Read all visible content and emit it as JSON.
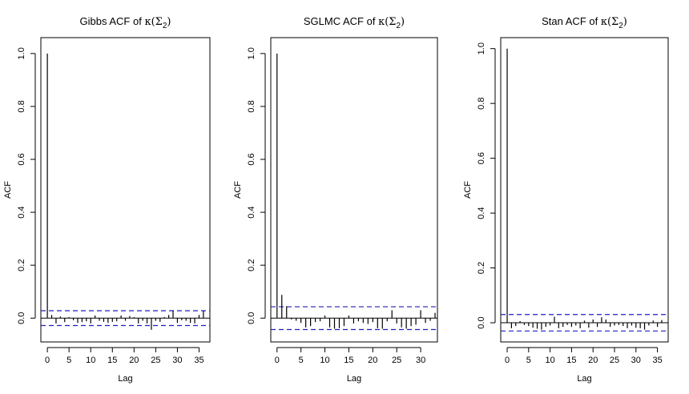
{
  "chart_data": [
    {
      "type": "bar",
      "title_main": "Gibbs ACF of ",
      "title_math": "κ(Σ",
      "title_sub": "2",
      "title_close": ")",
      "xlabel": "Lag",
      "ylabel": "ACF",
      "xlim": [
        -1.5,
        37.5
      ],
      "ylim": [
        -0.09,
        1.06
      ],
      "xticks": [
        0,
        5,
        10,
        15,
        20,
        25,
        30,
        35
      ],
      "yticks": [
        0.0,
        0.2,
        0.4,
        0.6,
        0.8,
        1.0
      ],
      "ci": 0.028,
      "lags": [
        0,
        1,
        2,
        3,
        4,
        5,
        6,
        7,
        8,
        9,
        10,
        11,
        12,
        13,
        14,
        15,
        16,
        17,
        18,
        19,
        20,
        21,
        22,
        23,
        24,
        25,
        26,
        27,
        28,
        29,
        30,
        31,
        32,
        33,
        34,
        35,
        36
      ],
      "values": [
        1.0,
        0.012,
        -0.02,
        0.006,
        -0.015,
        0.004,
        -0.008,
        -0.018,
        -0.015,
        -0.012,
        -0.02,
        0.01,
        -0.01,
        -0.014,
        -0.018,
        -0.014,
        -0.012,
        0.01,
        -0.01,
        0.008,
        0.004,
        -0.02,
        -0.01,
        -0.02,
        -0.044,
        -0.01,
        -0.014,
        0.004,
        0.012,
        0.028,
        -0.018,
        -0.008,
        -0.01,
        -0.018,
        -0.02,
        0.012,
        0.028
      ]
    },
    {
      "type": "bar",
      "title_main": "SGLMC ACF of ",
      "title_math": "κ(Σ",
      "title_sub": "2",
      "title_close": ")",
      "xlabel": "Lag",
      "ylabel": "ACF",
      "xlim": [
        -1.3,
        33.5
      ],
      "ylim": [
        -0.09,
        1.06
      ],
      "xticks": [
        0,
        5,
        10,
        15,
        20,
        25,
        30
      ],
      "yticks": [
        0.0,
        0.2,
        0.4,
        0.6,
        0.8,
        1.0
      ],
      "ci": 0.043,
      "lags": [
        0,
        1,
        2,
        3,
        4,
        5,
        6,
        7,
        8,
        9,
        10,
        11,
        12,
        13,
        14,
        15,
        16,
        17,
        18,
        19,
        20,
        21,
        22,
        23,
        24,
        25,
        26,
        27,
        28,
        29,
        30,
        31,
        32,
        33
      ],
      "values": [
        1.0,
        0.088,
        0.045,
        -0.005,
        -0.01,
        -0.018,
        -0.035,
        -0.03,
        -0.015,
        -0.012,
        0.01,
        -0.035,
        -0.04,
        -0.038,
        -0.03,
        0.01,
        -0.02,
        -0.012,
        -0.018,
        -0.022,
        -0.015,
        -0.038,
        -0.04,
        -0.012,
        0.03,
        -0.02,
        -0.035,
        -0.04,
        -0.03,
        -0.025,
        0.03,
        -0.018,
        -0.01,
        0.02
      ]
    },
    {
      "type": "bar",
      "title_main": "Stan ACF of ",
      "title_math": "κ(Σ",
      "title_sub": "2",
      "title_close": ")",
      "xlabel": "Lag",
      "ylabel": "ACF",
      "xlim": [
        -1.5,
        37.5
      ],
      "ylim": [
        -0.07,
        1.04
      ],
      "xticks": [
        0,
        5,
        10,
        15,
        20,
        25,
        30,
        35
      ],
      "yticks": [
        0.0,
        0.2,
        0.4,
        0.6,
        0.8,
        1.0
      ],
      "ci": 0.03,
      "lags": [
        0,
        1,
        2,
        3,
        4,
        5,
        6,
        7,
        8,
        9,
        10,
        11,
        12,
        13,
        14,
        15,
        16,
        17,
        18,
        19,
        20,
        21,
        22,
        23,
        24,
        25,
        26,
        27,
        28,
        29,
        30,
        31,
        32,
        33,
        34,
        35,
        36
      ],
      "values": [
        1.0,
        -0.02,
        -0.012,
        0.006,
        -0.008,
        -0.012,
        -0.018,
        -0.022,
        -0.025,
        -0.015,
        -0.01,
        0.022,
        -0.02,
        -0.015,
        -0.008,
        -0.015,
        -0.01,
        -0.02,
        0.008,
        -0.018,
        0.012,
        -0.015,
        0.02,
        0.012,
        -0.015,
        -0.01,
        -0.008,
        -0.012,
        -0.02,
        -0.01,
        -0.018,
        -0.02,
        -0.025,
        -0.01,
        0.008,
        -0.015,
        0.01
      ]
    }
  ]
}
